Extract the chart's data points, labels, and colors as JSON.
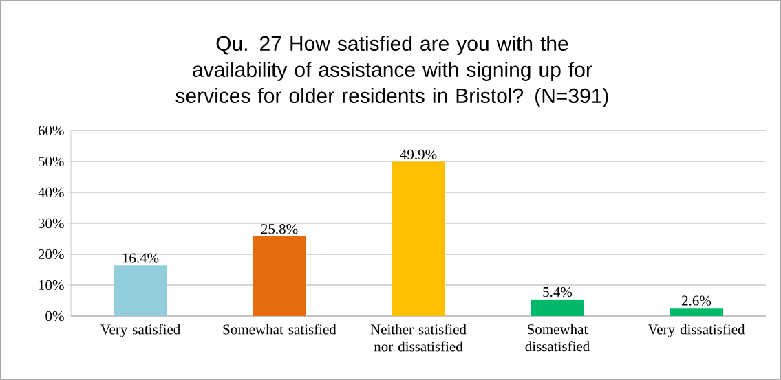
{
  "chart_data": {
    "type": "bar",
    "title": "Qu. 27  How satisfied are you with the availability of assistance with signing up for services for older residents in Bristol? (N=391)",
    "categories": [
      "Very satisfied",
      "Somewhat satisfied",
      "Neither satisfied nor dissatisfied",
      "Somewhat dissatisfied",
      "Very dissatisfied"
    ],
    "values": [
      16.4,
      25.8,
      49.9,
      5.4,
      2.6
    ],
    "value_labels": [
      "16.4%",
      "25.8%",
      "49.9%",
      "5.4%",
      "2.6%"
    ],
    "colors": [
      "#92cddc",
      "#e46c0a",
      "#ffc000",
      "#00b96b",
      "#00b96b"
    ],
    "ylim": [
      0,
      60
    ],
    "yticks": [
      {
        "value": 0,
        "label": "0%"
      },
      {
        "value": 10,
        "label": "10%"
      },
      {
        "value": 20,
        "label": "20%"
      },
      {
        "value": 30,
        "label": "30%"
      },
      {
        "value": 40,
        "label": "40%"
      },
      {
        "value": 50,
        "label": "50%"
      },
      {
        "value": 60,
        "label": "60%"
      }
    ],
    "grid": "y"
  }
}
